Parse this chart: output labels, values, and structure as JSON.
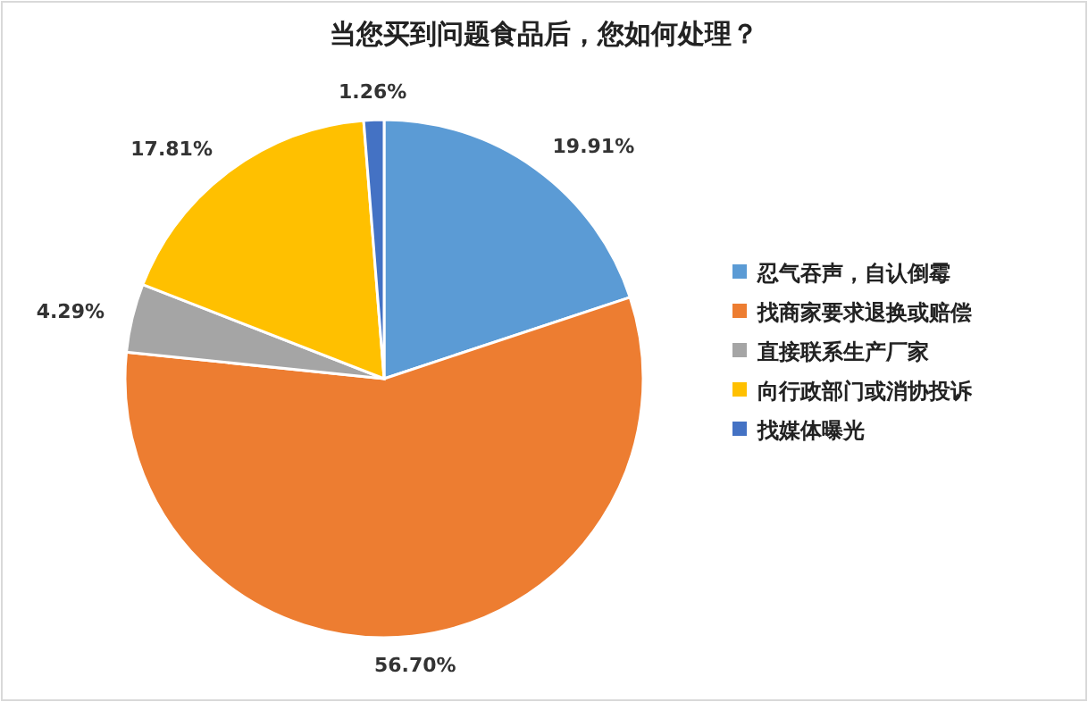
{
  "chart_data": {
    "type": "pie",
    "title": "当您买到问题食品后，您如何处理？",
    "categories": [
      "忍气吞声，自认倒霉",
      "找商家要求退换或赔偿",
      "直接联系生产厂家",
      "向行政部门或消协投诉",
      "找媒体曝光"
    ],
    "values": [
      19.91,
      56.7,
      4.29,
      17.81,
      1.26
    ],
    "value_labels": [
      "19.91%",
      "56.70%",
      "4.29%",
      "17.81%",
      "1.26%"
    ],
    "colors": [
      "#5b9bd5",
      "#ed7d31",
      "#a5a5a5",
      "#ffc000",
      "#4472c4"
    ],
    "legend": "right"
  }
}
